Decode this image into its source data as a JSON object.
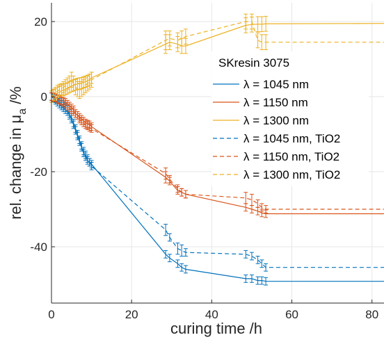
{
  "chart_data": {
    "type": "line",
    "title": "",
    "xlabel": "curing time /h",
    "ylabel": "rel. change in μa /%",
    "ylabel_main": "rel. change in μ",
    "ylabel_sub": "a",
    "ylabel_unit": " /%",
    "xlim": [
      0,
      83
    ],
    "ylim": [
      -55,
      25
    ],
    "xticks": [
      0,
      20,
      40,
      60,
      80
    ],
    "yticks": [
      -40,
      -20,
      0,
      20
    ],
    "xtick_labels": [
      "0",
      "20",
      "40",
      "60",
      "80"
    ],
    "ytick_labels": [
      "-40",
      "-20",
      "0",
      "20"
    ],
    "grid": true,
    "legend": {
      "placement": "top-right",
      "title": "SKresin 3075",
      "entries": [
        "λ = 1045 nm",
        "λ = 1150 nm",
        "λ = 1300 nm",
        "λ = 1045 nm, TiO2",
        "λ = 1150 nm, TiO2",
        "λ = 1300 nm, TiO2"
      ]
    },
    "series": [
      {
        "name": "λ = 1045 nm",
        "color": "#0072bd",
        "style": "solid",
        "x": [
          0,
          0.5,
          1,
          1.5,
          2,
          2.5,
          3,
          3.5,
          4,
          4.5,
          5,
          5.5,
          6,
          6.5,
          7,
          7.5,
          8,
          8.5,
          9,
          9.5,
          10,
          28.5,
          29.5,
          31.5,
          32.5,
          33.5,
          48.5,
          50,
          51.5,
          52.5,
          53.5,
          83
        ],
        "y": [
          0,
          -0.5,
          -1,
          -1.5,
          -2,
          -2.5,
          -3,
          -3.5,
          -4,
          -5,
          -6,
          -7.5,
          -9,
          -10.5,
          -12,
          -13.5,
          -15,
          -16,
          -17,
          -17.5,
          -18,
          -42,
          -43,
          -44.5,
          -45.5,
          -46,
          -48.5,
          -48.5,
          -49,
          -49,
          -49.2,
          -49.2
        ],
        "err": [
          1,
          1,
          1,
          1,
          1,
          1,
          1,
          1,
          1,
          1,
          1,
          1,
          1,
          1,
          1,
          1,
          1,
          1,
          1,
          1,
          1,
          1,
          1,
          1,
          1,
          1,
          1,
          1,
          1,
          1,
          1,
          0
        ]
      },
      {
        "name": "λ = 1150 nm",
        "color": "#d95319",
        "style": "solid",
        "x": [
          0,
          0.5,
          1,
          1.5,
          2,
          2.5,
          3,
          3.5,
          4,
          4.5,
          5,
          5.5,
          6,
          6.5,
          7,
          7.5,
          8,
          8.5,
          9,
          9.5,
          10,
          28.5,
          29.5,
          31.5,
          32.5,
          33.5,
          48.5,
          50,
          51.5,
          52.5,
          53.5,
          83
        ],
        "y": [
          0,
          0,
          -0.2,
          -0.5,
          -0.8,
          -1,
          -1.2,
          -1.5,
          -2,
          -2.5,
          -3,
          -3.5,
          -4.5,
          -5,
          -5.5,
          -6,
          -6.5,
          -7,
          -7.3,
          -7.5,
          -8,
          -21.5,
          -22.5,
          -25,
          -25.5,
          -26,
          -29.5,
          -30,
          -30.5,
          -31,
          -31.2,
          -31.2
        ],
        "err": [
          1,
          1,
          1,
          1,
          1,
          1,
          1,
          1,
          1,
          1,
          1,
          1,
          1,
          1,
          1,
          1,
          1,
          1,
          1,
          1,
          1,
          1.5,
          1,
          1,
          1,
          1,
          1,
          1,
          1,
          1,
          1,
          0
        ]
      },
      {
        "name": "λ = 1300 nm",
        "color": "#edb120",
        "style": "solid",
        "x": [
          0,
          0.5,
          1,
          1.5,
          2,
          2.5,
          3,
          3.5,
          4,
          4.5,
          5,
          5.5,
          6,
          6.5,
          7,
          7.5,
          8,
          8.5,
          9,
          9.5,
          10,
          28.5,
          29.5,
          31.5,
          32.5,
          33.5,
          48.5,
          50,
          51.5,
          52.5,
          53.5,
          83
        ],
        "y": [
          0,
          0.3,
          0.6,
          1,
          1.2,
          1.5,
          1.8,
          2,
          2.2,
          2.5,
          2.8,
          3,
          3.2,
          3.4,
          3.5,
          3.6,
          3.8,
          4,
          4.2,
          4.5,
          5,
          14,
          14.5,
          14,
          13.5,
          13.5,
          19,
          19.2,
          19.3,
          19.3,
          19.4,
          19.5
        ],
        "err": [
          1.5,
          1.5,
          1.5,
          1.5,
          1.5,
          1.5,
          1.5,
          1.5,
          1.5,
          1.5,
          1.5,
          1.5,
          1.5,
          1.5,
          1.5,
          1.5,
          1.5,
          1.5,
          1.5,
          1.5,
          1.5,
          2.5,
          2,
          2,
          2,
          2,
          2,
          2,
          2,
          2,
          2,
          0
        ]
      },
      {
        "name": "λ = 1045 nm, TiO2",
        "color": "#0072bd",
        "style": "dashed",
        "x": [
          0,
          0.5,
          1,
          1.5,
          2,
          2.5,
          3,
          3.5,
          4,
          4.5,
          5,
          5.5,
          6,
          6.5,
          7,
          7.5,
          8,
          8.5,
          9,
          9.5,
          10,
          28.5,
          29.5,
          31.5,
          32.5,
          33.5,
          48.5,
          50,
          51.5,
          52.5,
          53.5,
          83
        ],
        "y": [
          0,
          -0.3,
          -0.6,
          -1,
          -1.5,
          -2,
          -2.5,
          -3,
          -3.5,
          -4.5,
          -5.5,
          -7,
          -8.5,
          -10,
          -11.5,
          -13,
          -14.5,
          -15.5,
          -16.5,
          -17.5,
          -18.5,
          -35.5,
          -37.5,
          -40.5,
          -41,
          -41.5,
          -42,
          -42.5,
          -43.5,
          -44.5,
          -45.5,
          -45.5
        ],
        "err": [
          1,
          1,
          1,
          1,
          1,
          1,
          1,
          1,
          1,
          1,
          1,
          1,
          1,
          1,
          1,
          1,
          1,
          1,
          1,
          1,
          1,
          1.5,
          1,
          1.5,
          1.5,
          1,
          1,
          1,
          1,
          1,
          1,
          0
        ]
      },
      {
        "name": "λ = 1150 nm, TiO2",
        "color": "#d95319",
        "style": "dashed",
        "x": [
          0,
          0.5,
          1,
          1.5,
          2,
          2.5,
          3,
          3.5,
          4,
          4.5,
          5,
          5.5,
          6,
          6.5,
          7,
          7.5,
          8,
          8.5,
          9,
          9.5,
          10,
          28.5,
          29.5,
          31.5,
          32.5,
          33.5,
          48.5,
          50,
          51.5,
          52.5,
          53.5,
          83
        ],
        "y": [
          0,
          -0.2,
          -0.4,
          -0.7,
          -1,
          -1.3,
          -1.6,
          -2,
          -2.5,
          -3,
          -3.5,
          -4,
          -4.5,
          -5,
          -6,
          -6.5,
          -7,
          -7.5,
          -7.8,
          -8.2,
          -8.5,
          -20.5,
          -22,
          -24.5,
          -25.5,
          -26,
          -27,
          -27.5,
          -28.5,
          -29.5,
          -30,
          -30
        ],
        "err": [
          1,
          1,
          1,
          1,
          1,
          1,
          1,
          1,
          1,
          1,
          1,
          1,
          1,
          1,
          1,
          1,
          1,
          1,
          1,
          1,
          1,
          1.5,
          1,
          1,
          1,
          1,
          1.5,
          1.5,
          1,
          1,
          1,
          0
        ]
      },
      {
        "name": "λ = 1300 nm, TiO2",
        "color": "#edb120",
        "style": "dashed",
        "x": [
          0,
          0.5,
          1,
          1.5,
          2,
          2.5,
          3,
          3.5,
          4,
          4.5,
          5,
          5.5,
          6,
          6.5,
          7,
          7.5,
          8,
          8.5,
          9,
          9.5,
          10,
          28.5,
          29.5,
          31.5,
          32.5,
          33.5,
          48.5,
          50,
          51.5,
          52.5,
          53.5,
          83
        ],
        "y": [
          0,
          0.5,
          1,
          1.5,
          1.8,
          2,
          2.5,
          3,
          3.5,
          4,
          4.5,
          3.5,
          2.5,
          2,
          1.5,
          2,
          2.5,
          3,
          3.5,
          4,
          4.5,
          15,
          15.5,
          15,
          15.5,
          16,
          20,
          20,
          15,
          14.5,
          14.5,
          14.5
        ],
        "err": [
          1.5,
          1.5,
          1.5,
          1.5,
          1.5,
          1.5,
          1.5,
          1.5,
          1.5,
          1.5,
          2,
          2,
          2,
          2,
          2,
          2,
          2,
          2,
          2,
          2,
          2,
          2.5,
          2,
          2,
          2,
          2,
          2,
          2,
          2,
          2,
          2,
          0
        ]
      }
    ]
  }
}
